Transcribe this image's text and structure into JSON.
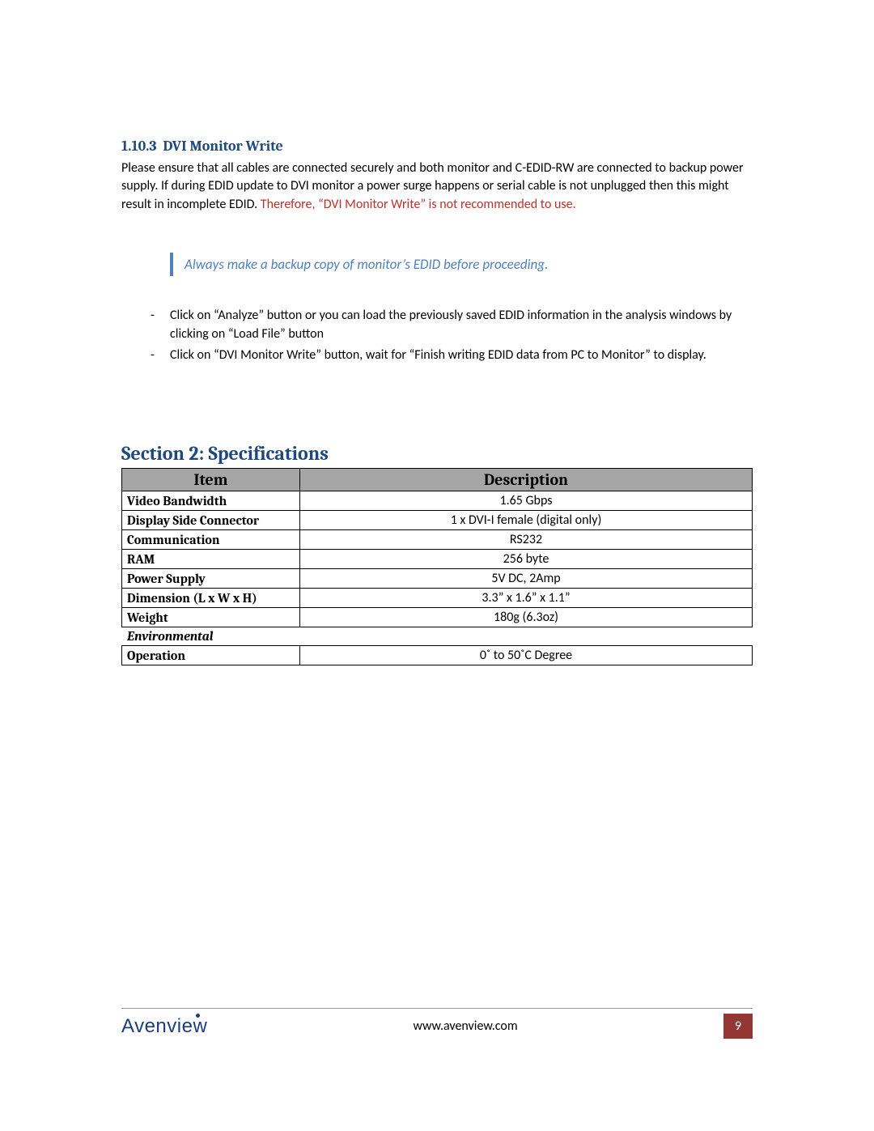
{
  "colors": {
    "heading_blue": "#1f497d",
    "warn_red": "#c0302a",
    "callout_border": "#4f81bd",
    "callout_text": "#4f81bd",
    "table_header_bg": "#a6a6a6",
    "brand_color": "#1f3d7a",
    "pagenum_bg": "#943634"
  },
  "subsection": {
    "number": "1.10.3",
    "title": "DVI Monitor Write"
  },
  "para1_part1": "Please ensure that all cables are connected securely and both monitor and C-EDID-RW are connected to backup power supply. If during EDID update to DVI monitor a power surge happens or serial cable is not unplugged then this might result in incomplete EDID. ",
  "para1_warn": "Therefore, “DVI Monitor Write” is not recommended to use.",
  "callout_text": "Always make a backup copy of monitor’s EDID before proceeding.",
  "bullets": [
    "Click on “Analyze” button or you can load the previously saved EDID information in the analysis windows by clicking on “Load File” button",
    "Click on “DVI Monitor Write” button, wait for “Finish writing EDID data from PC to Monitor” to display."
  ],
  "section_heading": "Section 2: Specifications",
  "table": {
    "header": {
      "col1": "Item",
      "col2": "Description"
    },
    "rows": [
      {
        "label": "Video Bandwidth",
        "value": "1.65 Gbps"
      },
      {
        "label": "Display Side Connector",
        "value": "1 x DVI-I female (digital only)"
      },
      {
        "label": "Communication",
        "value": "RS232"
      },
      {
        "label": "RAM",
        "value": "256 byte"
      },
      {
        "label": "Power Supply",
        "value": "5V DC, 2Amp"
      },
      {
        "label": "Dimension (L x W x H)",
        "value": "3.3” x 1.6” x 1.1”"
      },
      {
        "label": "Weight",
        "value": "180g (6.3oz)"
      }
    ],
    "subheader": "Environmental",
    "rows2": [
      {
        "label": "Operation",
        "value": "0˚ to 50˚C Degree"
      }
    ]
  },
  "footer": {
    "brand": "Avenview",
    "url": "www.avenview.com",
    "page": "9"
  }
}
